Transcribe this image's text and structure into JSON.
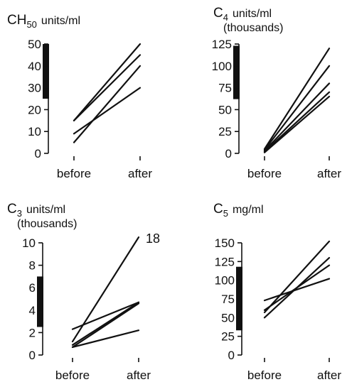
{
  "chart_data": [
    {
      "type": "line",
      "title": "CH50 units/ml",
      "title_main": "CH",
      "title_sub": "50",
      "title_rest": "units/ml",
      "title_line2": "",
      "categories": [
        "before",
        "after"
      ],
      "ylim": [
        0,
        50
      ],
      "yticks": [
        0,
        10,
        20,
        30,
        40,
        50
      ],
      "normal_range": [
        25,
        50
      ],
      "series": [
        {
          "values": [
            15,
            50
          ]
        },
        {
          "values": [
            15,
            45
          ]
        },
        {
          "values": [
            9,
            30
          ]
        },
        {
          "values": [
            5,
            40
          ]
        }
      ],
      "annotation": null
    },
    {
      "type": "line",
      "title": "C4 units/ml (thousands)",
      "title_main": "C",
      "title_sub": "4",
      "title_rest": "units/ml",
      "title_line2": "(thousands)",
      "categories": [
        "before",
        "after"
      ],
      "ylim": [
        0,
        125
      ],
      "yticks": [
        0,
        25,
        50,
        75,
        100,
        125
      ],
      "normal_range": [
        62,
        123
      ],
      "series": [
        {
          "values": [
            5,
            120
          ]
        },
        {
          "values": [
            4,
            100
          ]
        },
        {
          "values": [
            3,
            80
          ]
        },
        {
          "values": [
            2,
            70
          ]
        },
        {
          "values": [
            1,
            65
          ]
        }
      ],
      "annotation": null
    },
    {
      "type": "line",
      "title": "C3 units/ml (thousands)",
      "title_main": "C",
      "title_sub": "3",
      "title_rest": "units/ml",
      "title_line2": "(thousands)",
      "categories": [
        "before",
        "after"
      ],
      "ylim": [
        0,
        10
      ],
      "yticks": [
        0,
        2,
        4,
        6,
        8,
        10
      ],
      "normal_range": [
        2.5,
        7
      ],
      "series": [
        {
          "values": [
            1.2,
            10.5
          ]
        },
        {
          "values": [
            2.3,
            4.7
          ]
        },
        {
          "values": [
            0.9,
            4.7
          ]
        },
        {
          "values": [
            0.7,
            4.6
          ]
        },
        {
          "values": [
            0.7,
            2.2
          ]
        }
      ],
      "annotation": {
        "text": "18",
        "series_index": 0
      }
    },
    {
      "type": "line",
      "title": "C5 mg/ml",
      "title_main": "C",
      "title_sub": "5",
      "title_rest": "mg/ml",
      "title_line2": "",
      "categories": [
        "before",
        "after"
      ],
      "ylim": [
        0,
        150
      ],
      "yticks": [
        0,
        25,
        50,
        75,
        100,
        125,
        150
      ],
      "normal_range": [
        33,
        118
      ],
      "series": [
        {
          "values": [
            50,
            130
          ]
        },
        {
          "values": [
            57,
            152
          ]
        },
        {
          "values": [
            60,
            120
          ]
        },
        {
          "values": [
            73,
            102
          ]
        }
      ],
      "annotation": null
    }
  ]
}
